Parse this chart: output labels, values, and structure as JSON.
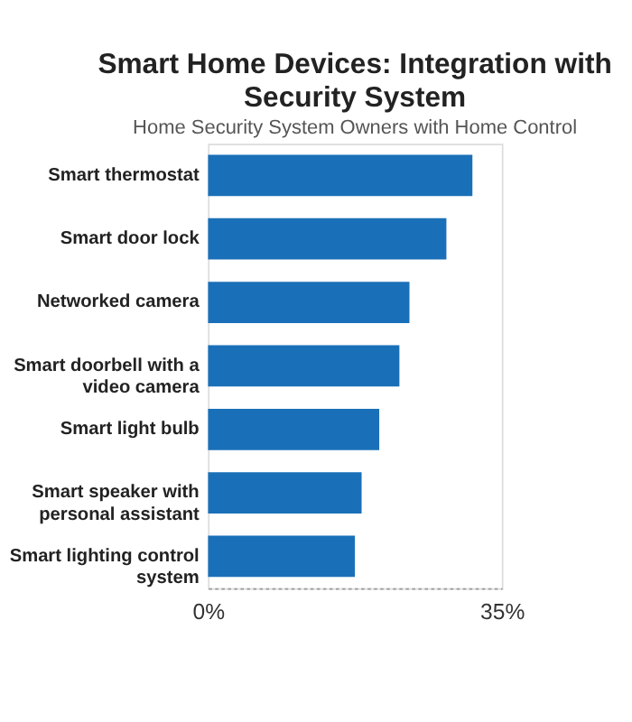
{
  "chart_data": {
    "type": "bar",
    "orientation": "horizontal",
    "title": "Smart Home Devices: Integration with Security System",
    "subtitle": "Home Security System Owners with Home Control",
    "categories": [
      "Smart thermostat",
      "Smart door lock",
      "Networked camera",
      "Smart doorbell with a video camera",
      "Smart light bulb",
      "Smart speaker with personal assistant",
      "Smart lighting control system"
    ],
    "values": [
      31.5,
      28.4,
      24.0,
      22.8,
      20.4,
      18.3,
      17.5
    ],
    "color": "#1a70b8",
    "xlim": [
      0,
      35
    ],
    "xticks": [
      {
        "value": 0,
        "label": "0%"
      },
      {
        "value": 35,
        "label": "35%"
      }
    ],
    "grid": false
  }
}
